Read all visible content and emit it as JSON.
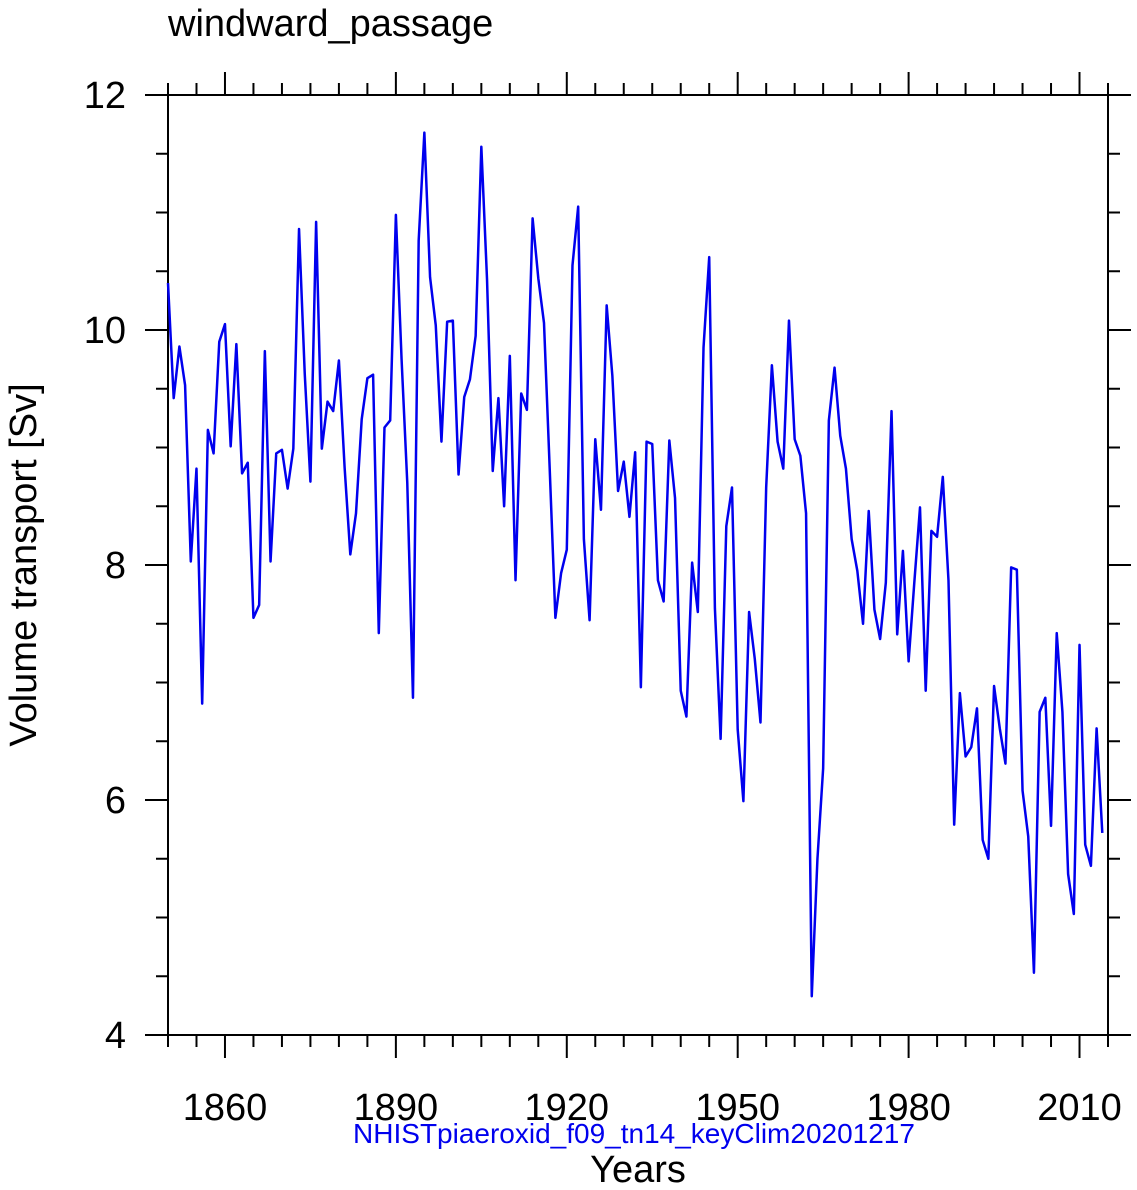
{
  "chart_data": {
    "type": "line",
    "title": "windward_passage",
    "xlabel": "Years",
    "ylabel": "Volume transport [Sv]",
    "subtitle": "NHISTpiaeroxid_f09_tn14_keyClim20201217",
    "xlim": [
      1850,
      2015
    ],
    "ylim": [
      4,
      12
    ],
    "x_ticks": [
      1860,
      1890,
      1920,
      1950,
      1980,
      2010
    ],
    "x_tick_labels": [
      "1860",
      "1890",
      "1920",
      "1950",
      "1980",
      "2010"
    ],
    "x_minor_step": 5,
    "y_ticks": [
      4,
      6,
      8,
      10,
      12
    ],
    "y_tick_labels": [
      "4",
      "6",
      "8",
      "10",
      "12"
    ],
    "y_minor_step": 0.5,
    "grid": false,
    "series": [
      {
        "name": "NHISTpiaeroxid_f09_tn14_keyClim20201217",
        "color": "#0000ee",
        "x_start": 1850,
        "x_step": 1,
        "values": [
          10.4,
          9.42,
          9.86,
          9.53,
          8.03,
          8.82,
          6.82,
          9.15,
          8.95,
          9.9,
          10.05,
          9.01,
          9.88,
          8.78,
          8.87,
          7.55,
          7.66,
          9.82,
          8.03,
          8.95,
          8.98,
          8.65,
          8.99,
          10.86,
          9.63,
          8.71,
          10.92,
          8.99,
          9.39,
          9.31,
          9.74,
          8.83,
          8.09,
          8.44,
          9.24,
          9.59,
          9.62,
          7.42,
          9.17,
          9.23,
          10.98,
          9.75,
          8.7,
          6.87,
          10.76,
          11.68,
          10.45,
          10.04,
          9.05,
          10.07,
          10.08,
          8.77,
          9.43,
          9.58,
          9.95,
          11.56,
          10.43,
          8.8,
          9.42,
          8.5,
          9.78,
          7.87,
          9.46,
          9.32,
          10.95,
          10.44,
          10.06,
          8.82,
          7.55,
          7.93,
          8.13,
          10.55,
          11.05,
          8.22,
          7.53,
          9.07,
          8.47,
          10.21,
          9.61,
          8.63,
          8.88,
          8.41,
          8.96,
          6.96,
          9.05,
          9.03,
          7.87,
          7.69,
          9.06,
          8.57,
          6.93,
          6.71,
          8.02,
          7.6,
          9.85,
          10.62,
          7.63,
          6.52,
          8.33,
          8.66,
          6.6,
          5.99,
          7.6,
          7.2,
          6.66,
          8.66,
          9.7,
          9.05,
          8.82,
          10.08,
          9.07,
          8.93,
          8.44,
          4.33,
          5.5,
          6.27,
          9.23,
          9.68,
          9.1,
          8.82,
          8.22,
          7.95,
          7.5,
          8.46,
          7.62,
          7.37,
          7.85,
          9.31,
          7.41,
          8.12,
          7.18,
          7.85,
          8.49,
          6.93,
          8.29,
          8.24,
          8.75,
          7.87,
          5.79,
          6.91,
          6.37,
          6.45,
          6.78,
          5.66,
          5.5,
          6.97,
          6.61,
          6.31,
          7.98,
          7.96,
          6.08,
          5.69,
          4.53,
          6.75,
          6.87,
          5.78,
          7.42,
          6.75,
          5.37,
          5.03,
          7.32,
          5.62,
          5.44,
          6.61,
          5.72
        ]
      }
    ]
  }
}
